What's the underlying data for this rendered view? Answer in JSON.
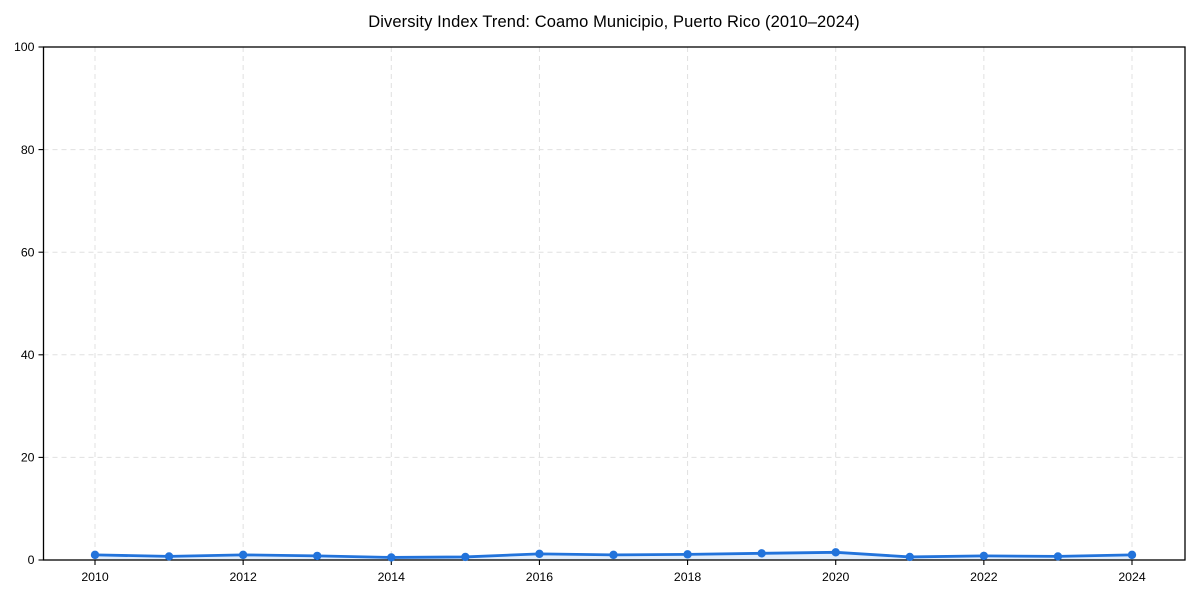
{
  "chart_data": {
    "type": "line",
    "title": "Diversity Index Trend: Coamo Municipio, Puerto Rico (2010–2024)",
    "series_name": "Diversity Index",
    "x": [
      2010,
      2011,
      2012,
      2013,
      2014,
      2015,
      2016,
      2017,
      2018,
      2019,
      2020,
      2021,
      2022,
      2023,
      2024
    ],
    "values": [
      1.0,
      0.7,
      1.0,
      0.8,
      0.5,
      0.6,
      1.2,
      1.0,
      1.1,
      1.3,
      1.5,
      0.6,
      0.8,
      0.7,
      1.0
    ],
    "xlabel": "",
    "ylabel": "",
    "xlim": [
      2009.3,
      2024.7
    ],
    "ylim": [
      0,
      100
    ],
    "yticks": [
      0,
      20,
      40,
      60,
      80,
      100
    ],
    "xticks": [
      2010,
      2012,
      2014,
      2016,
      2018,
      2020,
      2022,
      2024
    ],
    "grid": true,
    "grid_style": "dashed",
    "legend": "none",
    "colors": {
      "line": "#2273db",
      "marker": "#2273db",
      "area_fill": "rgba(34,115,219,0.13)",
      "grid": "#e0e0e0",
      "spine": "#000000",
      "tick_text": "#000000",
      "background": "#ffffff"
    }
  }
}
